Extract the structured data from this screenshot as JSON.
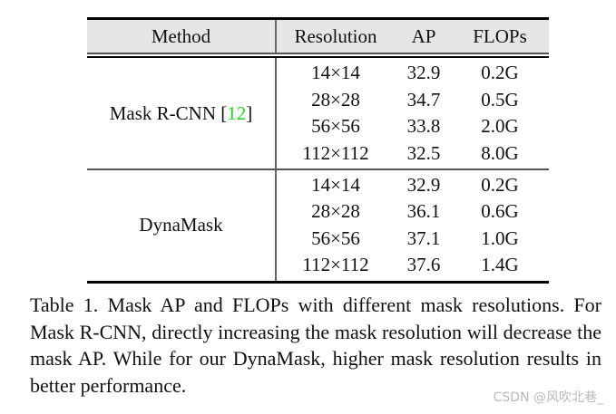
{
  "table": {
    "headers": [
      "Method",
      "Resolution",
      "AP",
      "FLOPs"
    ],
    "groups": [
      {
        "method": "Mask R-CNN",
        "citation_open": "[",
        "citation": "12",
        "citation_close": "]",
        "citation_color": "#1fdc1f",
        "rows": [
          {
            "resolution": "14×14",
            "ap": "32.9",
            "flops": "0.2G"
          },
          {
            "resolution": "28×28",
            "ap": "34.7",
            "flops": "0.5G"
          },
          {
            "resolution": "56×56",
            "ap": "33.8",
            "flops": "2.0G"
          },
          {
            "resolution": "112×112",
            "ap": "32.5",
            "flops": "8.0G"
          }
        ]
      },
      {
        "method": "DynaMask",
        "rows": [
          {
            "resolution": "14×14",
            "ap": "32.9",
            "flops": "0.2G"
          },
          {
            "resolution": "28×28",
            "ap": "36.1",
            "flops": "0.6G"
          },
          {
            "resolution": "56×56",
            "ap": "37.1",
            "flops": "1.0G"
          },
          {
            "resolution": "112×112",
            "ap": "37.6",
            "flops": "1.4G"
          }
        ]
      }
    ]
  },
  "caption": "Table 1.  Mask AP and FLOPs with different mask resolutions. For Mask R-CNN, directly increasing the mask resolution will decrease the mask AP. While for our DynaMask, higher mask resolution results in better performance.",
  "watermark": "CSDN @风吹北巷_"
}
